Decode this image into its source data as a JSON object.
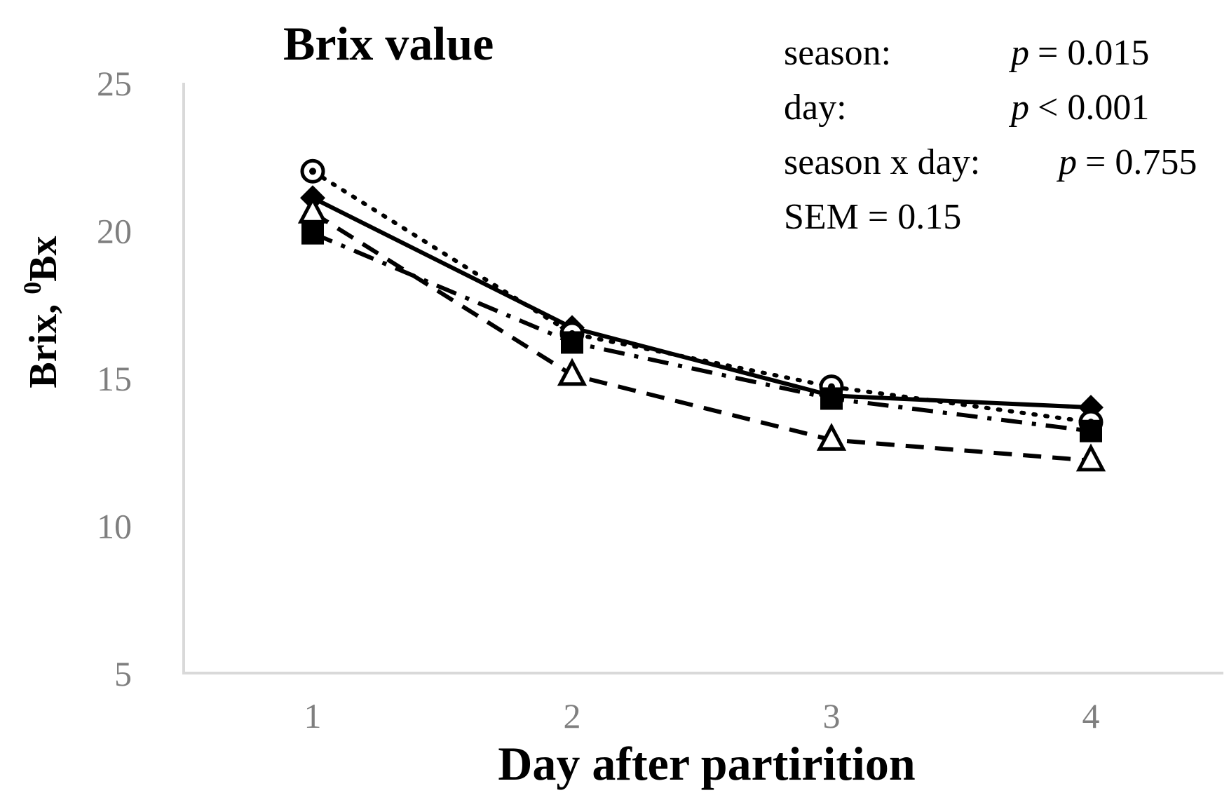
{
  "chart_data": {
    "type": "line",
    "title": "Brix value",
    "xlabel": "Day after partirition",
    "ylabel": {
      "prefix": "Brix, ",
      "sup": "0",
      "suffix": "Bx"
    },
    "x": [
      1,
      2,
      3,
      4
    ],
    "x_ticks": [
      "1",
      "2",
      "3",
      "4"
    ],
    "y_ticks": [
      "5",
      "10",
      "15",
      "20",
      "25"
    ],
    "ylim": [
      5,
      25
    ],
    "grid": false,
    "series": [
      {
        "marker": "diamond",
        "line_style": "solid",
        "values": [
          21.1,
          16.7,
          14.4,
          14.0
        ]
      },
      {
        "marker": "circle-dot",
        "line_style": "dotted",
        "values": [
          22.0,
          16.5,
          14.7,
          13.5
        ]
      },
      {
        "marker": "square",
        "line_style": "dash-dot",
        "values": [
          19.9,
          16.2,
          14.3,
          13.2
        ]
      },
      {
        "marker": "triangle",
        "line_style": "dashed",
        "values": [
          20.6,
          15.1,
          12.9,
          12.2
        ]
      }
    ],
    "annotations": {
      "season": {
        "label": "season:",
        "p": "p",
        "value": "= 0.015"
      },
      "day": {
        "label": "day:",
        "p": "p",
        "value": "< 0.001"
      },
      "interaction": {
        "label": "season x day:",
        "p": "p",
        "value": "= 0.755"
      },
      "sem": "SEM = 0.15"
    }
  }
}
